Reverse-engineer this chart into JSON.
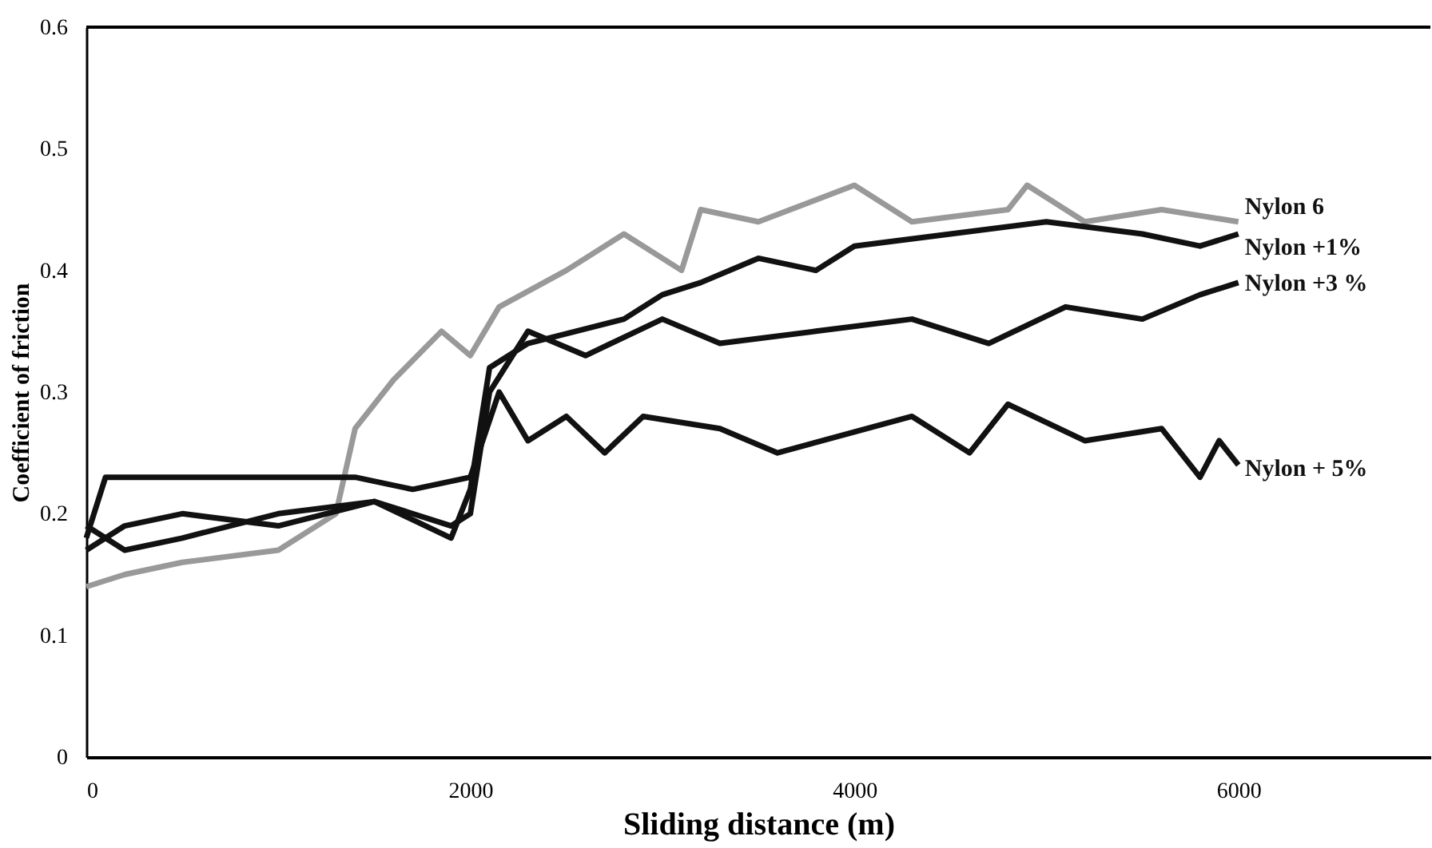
{
  "chart_data": {
    "type": "line",
    "xlabel": "Sliding distance (m)",
    "ylabel": "Coefficient of friction",
    "xlim": [
      0,
      7000
    ],
    "xticks": [
      0,
      2000,
      4000,
      6000
    ],
    "ylim": [
      0,
      0.6
    ],
    "yticks": [
      0,
      0.1,
      0.2,
      0.3,
      0.4,
      0.5,
      0.6
    ],
    "marker": "none",
    "line_style": "solid",
    "series": [
      {
        "name": "Nylon 6",
        "color": "#999999",
        "x": [
          0,
          200,
          500,
          1000,
          1300,
          1400,
          1600,
          1850,
          2000,
          2150,
          2500,
          2800,
          3100,
          3200,
          3500,
          4000,
          4300,
          4800,
          4900,
          5200,
          5600,
          6000
        ],
        "values": [
          0.14,
          0.15,
          0.16,
          0.17,
          0.2,
          0.27,
          0.31,
          0.35,
          0.33,
          0.37,
          0.4,
          0.43,
          0.4,
          0.45,
          0.44,
          0.47,
          0.44,
          0.45,
          0.47,
          0.44,
          0.45,
          0.44
        ]
      },
      {
        "name": "Nylon +1%",
        "color": "#111111",
        "x": [
          0,
          200,
          500,
          1000,
          1500,
          1900,
          2000,
          2100,
          2300,
          2800,
          3000,
          3200,
          3500,
          3800,
          4000,
          4500,
          5000,
          5500,
          5800,
          6000
        ],
        "values": [
          0.19,
          0.17,
          0.18,
          0.2,
          0.21,
          0.18,
          0.22,
          0.32,
          0.34,
          0.36,
          0.38,
          0.39,
          0.41,
          0.4,
          0.42,
          0.43,
          0.44,
          0.43,
          0.42,
          0.43
        ]
      },
      {
        "name": "Nylon +3 %",
        "color": "#111111",
        "x": [
          0,
          200,
          500,
          1000,
          1500,
          1900,
          2000,
          2100,
          2300,
          2600,
          3000,
          3300,
          3800,
          4300,
          4700,
          5100,
          5500,
          5800,
          6000
        ],
        "values": [
          0.17,
          0.19,
          0.2,
          0.19,
          0.21,
          0.19,
          0.2,
          0.3,
          0.35,
          0.33,
          0.36,
          0.34,
          0.35,
          0.36,
          0.34,
          0.37,
          0.36,
          0.38,
          0.39
        ]
      },
      {
        "name": "Nylon + 5%",
        "color": "#111111",
        "x": [
          0,
          100,
          500,
          1000,
          1400,
          1700,
          2000,
          2150,
          2300,
          2500,
          2700,
          2900,
          3300,
          3600,
          4300,
          4600,
          4800,
          5200,
          5600,
          5800,
          5900,
          6000
        ],
        "values": [
          0.18,
          0.23,
          0.23,
          0.23,
          0.23,
          0.22,
          0.23,
          0.3,
          0.26,
          0.28,
          0.25,
          0.28,
          0.27,
          0.25,
          0.28,
          0.25,
          0.29,
          0.26,
          0.27,
          0.23,
          0.26,
          0.24
        ]
      }
    ]
  }
}
